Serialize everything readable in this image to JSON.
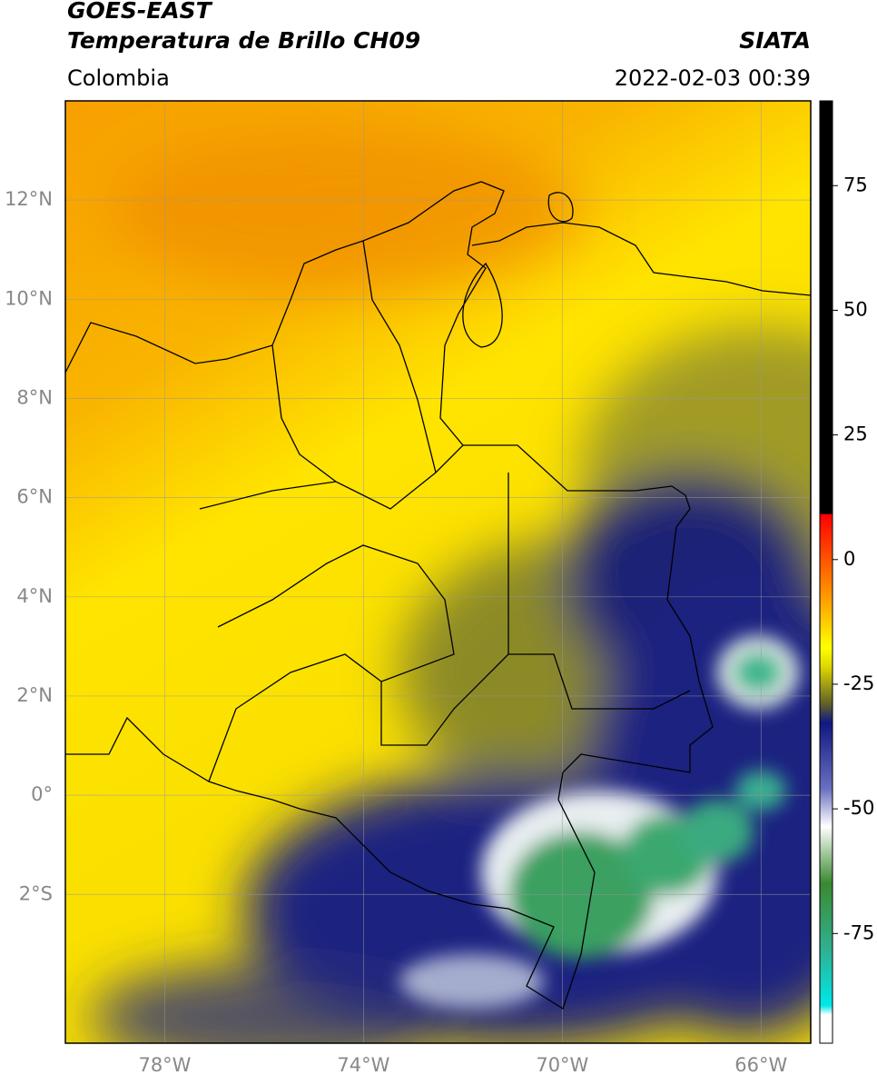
{
  "header": {
    "title": "GOES-EAST",
    "subtitle": "Temperatura de Brillo CH09",
    "source": "SIATA",
    "region": "Colombia",
    "datetime": "2022-02-03 00:39"
  },
  "map": {
    "lonlim": [
      -80,
      -65
    ],
    "latlim": [
      -5,
      14
    ],
    "lonticks": [
      {
        "value": -78,
        "label": "78°W"
      },
      {
        "value": -74,
        "label": "74°W"
      },
      {
        "value": -70,
        "label": "70°W"
      },
      {
        "value": -66,
        "label": "66°W"
      }
    ],
    "latticks": [
      {
        "value": 12,
        "label": "12°N"
      },
      {
        "value": 10,
        "label": "10°N"
      },
      {
        "value": 8,
        "label": "8°N"
      },
      {
        "value": 6,
        "label": "6°N"
      },
      {
        "value": 4,
        "label": "4°N"
      },
      {
        "value": 2,
        "label": "2°N"
      },
      {
        "value": 0,
        "label": "0°"
      },
      {
        "value": -2,
        "label": "2°S"
      }
    ],
    "grid": true
  },
  "colorbar": {
    "vlim": [
      -97,
      92
    ],
    "ticks": [
      75,
      50,
      25,
      0,
      -25,
      -50,
      -75
    ]
  }
}
